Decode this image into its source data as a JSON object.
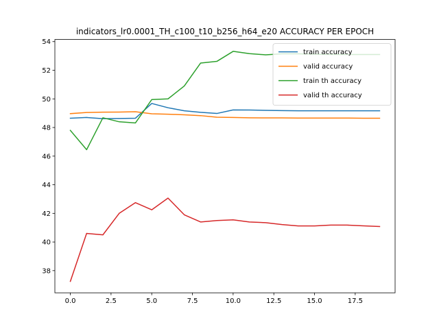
{
  "chart_data": {
    "type": "line",
    "title": "indicators_lr0.0001_TH_c100_t10_b256_h64_e20 ACCURACY PER EPOCH",
    "xlabel": "",
    "ylabel": "",
    "x": [
      0,
      1,
      2,
      3,
      4,
      5,
      6,
      7,
      8,
      9,
      10,
      11,
      12,
      13,
      14,
      15,
      16,
      17,
      18,
      19
    ],
    "xlim": [
      -0.95,
      19.95
    ],
    "ylim": [
      36.45,
      54.15
    ],
    "xticks": [
      0,
      2.5,
      5,
      7.5,
      10,
      12.5,
      15,
      17.5
    ],
    "xtick_labels": [
      "0.0",
      "2.5",
      "5.0",
      "7.5",
      "10.0",
      "12.5",
      "15.0",
      "17.5"
    ],
    "yticks": [
      38,
      40,
      42,
      44,
      46,
      48,
      50,
      52,
      54
    ],
    "ytick_labels": [
      "38",
      "40",
      "42",
      "44",
      "46",
      "48",
      "50",
      "52",
      "54"
    ],
    "grid": false,
    "legend_position": "top-right",
    "series": [
      {
        "name": "train accuracy",
        "color": "#1f77b4",
        "values": [
          48.65,
          48.7,
          48.62,
          48.63,
          48.65,
          49.68,
          49.38,
          49.17,
          49.06,
          48.98,
          49.23,
          49.22,
          49.2,
          49.18,
          49.17,
          49.17,
          49.17,
          49.17,
          49.17,
          49.17
        ]
      },
      {
        "name": "valid accuracy",
        "color": "#ff7f0e",
        "values": [
          48.97,
          49.05,
          49.07,
          49.08,
          49.1,
          48.96,
          48.93,
          48.89,
          48.83,
          48.72,
          48.7,
          48.68,
          48.67,
          48.67,
          48.66,
          48.66,
          48.66,
          48.66,
          48.65,
          48.65
        ]
      },
      {
        "name": "train th accuracy",
        "color": "#2ca02c",
        "values": [
          47.8,
          46.45,
          48.68,
          48.4,
          48.32,
          49.95,
          50.0,
          50.9,
          52.5,
          52.62,
          53.32,
          53.16,
          53.08,
          53.15,
          53.15,
          53.12,
          53.1,
          53.1,
          53.1,
          53.1
        ]
      },
      {
        "name": "valid th accuracy",
        "color": "#d62728",
        "values": [
          37.25,
          40.6,
          40.5,
          42.0,
          42.75,
          42.25,
          43.07,
          41.9,
          41.4,
          41.5,
          41.55,
          41.4,
          41.35,
          41.22,
          41.12,
          41.12,
          41.18,
          41.18,
          41.13,
          41.08
        ]
      }
    ]
  }
}
